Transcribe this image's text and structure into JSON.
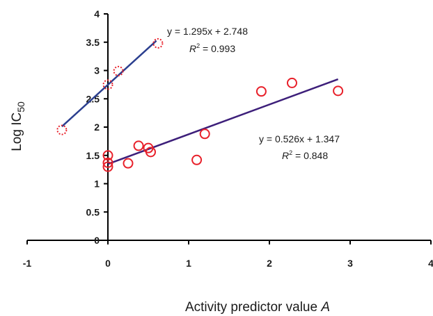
{
  "chart_data": {
    "type": "scatter",
    "xlabel": "Activity predictor value A",
    "ylabel": "Log IC50",
    "xlim": [
      -1,
      4
    ],
    "ylim": [
      0,
      4
    ],
    "x_ticks": [
      "-1",
      "0",
      "1",
      "2",
      "3",
      "4"
    ],
    "y_ticks": [
      "0",
      "0.5",
      "1",
      "1.5",
      "2",
      "2.5",
      "3",
      "3.5",
      "4"
    ],
    "grid": false,
    "series": [
      {
        "marker": "dotted-circle",
        "color": "#e8202a",
        "points": [
          {
            "x": -0.57,
            "y": 1.95
          },
          {
            "x": 0.0,
            "y": 2.75
          },
          {
            "x": 0.13,
            "y": 2.99
          },
          {
            "x": 0.62,
            "y": 3.48
          }
        ],
        "fit": {
          "slope": 1.295,
          "intercept": 2.748,
          "x_range": [
            -0.57,
            0.6
          ],
          "color": "#2b3f8f",
          "equation": "y = 1.295x + 2.748",
          "r2_label": "R",
          "r2_sup": "2",
          "r2_value": " = 0.993"
        }
      },
      {
        "marker": "circle",
        "color": "#e8202a",
        "points": [
          {
            "x": 0.0,
            "y": 1.3
          },
          {
            "x": 0.0,
            "y": 1.37
          },
          {
            "x": 0.0,
            "y": 1.5
          },
          {
            "x": 0.25,
            "y": 1.36
          },
          {
            "x": 0.38,
            "y": 1.67
          },
          {
            "x": 0.5,
            "y": 1.63
          },
          {
            "x": 0.53,
            "y": 1.56
          },
          {
            "x": 1.1,
            "y": 1.42
          },
          {
            "x": 1.2,
            "y": 1.88
          },
          {
            "x": 1.9,
            "y": 2.63
          },
          {
            "x": 2.28,
            "y": 2.78
          },
          {
            "x": 2.85,
            "y": 2.64
          }
        ],
        "fit": {
          "slope": 0.526,
          "intercept": 1.347,
          "x_range": [
            0,
            2.85
          ],
          "color": "#3d1f7a",
          "equation": "y = 0.526x + 1.347",
          "r2_label": "R",
          "r2_sup": "2",
          "r2_value": " = 0.848"
        }
      }
    ]
  }
}
